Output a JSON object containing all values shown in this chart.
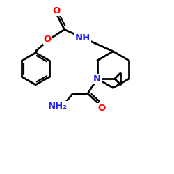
{
  "bg": "#ffffff",
  "bc": "#000000",
  "bw": 2.0,
  "fs": 9.5,
  "atom_O": "#ff0000",
  "atom_N": "#2222ee",
  "figsize": [
    2.5,
    2.5
  ],
  "dpi": 100,
  "xlim": [
    0,
    10
  ],
  "ylim": [
    0,
    10
  ]
}
